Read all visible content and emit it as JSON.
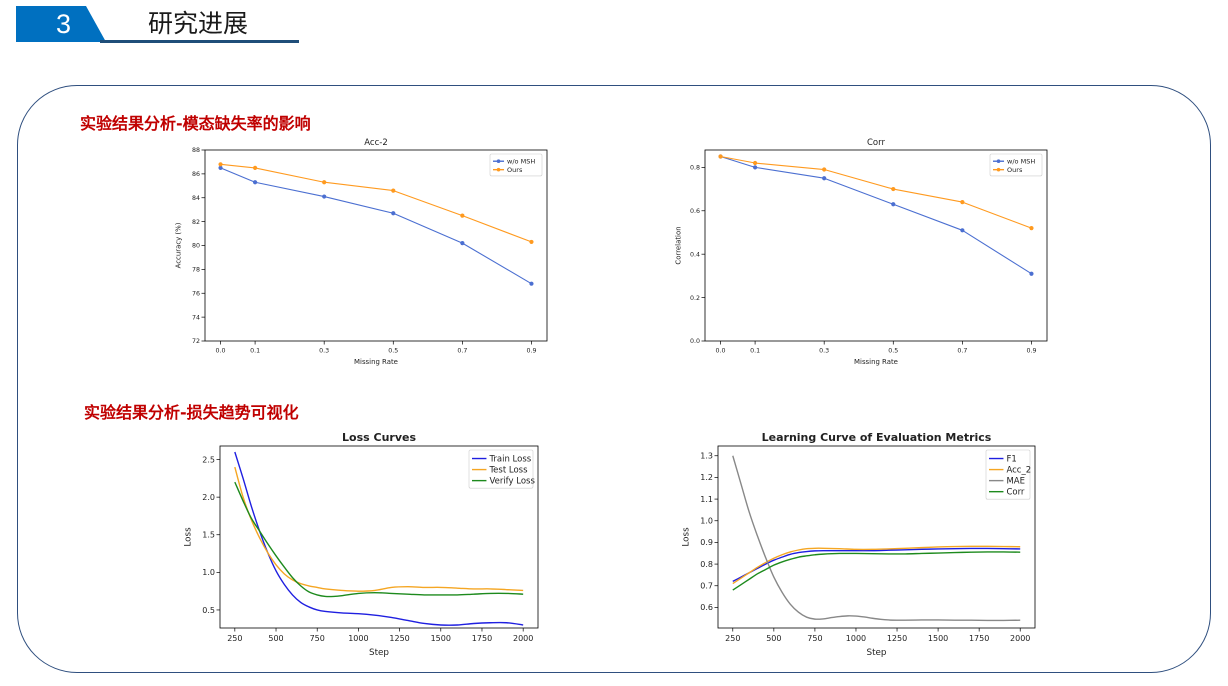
{
  "header": {
    "number": "3",
    "title": "研究进展"
  },
  "sections": {
    "missing_rate": "实验结果分析-模态缺失率的影响",
    "loss_vis": "实验结果分析-损失趋势可视化"
  },
  "colors": {
    "brand_blue": "#0070c0",
    "title_red": "#c00000",
    "panel_border": "#2f4f7f"
  },
  "chart_data": [
    {
      "id": "acc2",
      "type": "line",
      "title": "Acc-2",
      "bold_title": false,
      "xlabel": "Missing Rate",
      "ylabel": "Accuracy (%)",
      "xlim": [
        -0.045,
        0.945
      ],
      "ylim": [
        72,
        88
      ],
      "xticks": [
        0.0,
        0.1,
        0.3,
        0.5,
        0.7,
        0.9
      ],
      "xtick_labels": [
        "0.0",
        "0.1",
        "0.3",
        "0.5",
        "0.7",
        "0.9"
      ],
      "yticks": [
        72,
        74,
        76,
        78,
        80,
        82,
        84,
        86,
        88
      ],
      "ytick_labels": [
        "72",
        "74",
        "76",
        "78",
        "80",
        "82",
        "84",
        "86",
        "88"
      ],
      "legend": "top-right",
      "markers": true,
      "series": [
        {
          "name": "w/o MSH",
          "color": "#4b6fd1",
          "x": [
            0.0,
            0.1,
            0.3,
            0.5,
            0.7,
            0.9
          ],
          "y": [
            86.5,
            85.3,
            84.1,
            82.7,
            80.2,
            76.8
          ]
        },
        {
          "name": "Ours",
          "color": "#ff9a1f",
          "x": [
            0.0,
            0.1,
            0.3,
            0.5,
            0.7,
            0.9
          ],
          "y": [
            86.8,
            86.5,
            85.3,
            84.6,
            82.5,
            80.3
          ]
        }
      ]
    },
    {
      "id": "corr",
      "type": "line",
      "title": "Corr",
      "bold_title": false,
      "xlabel": "Missing Rate",
      "ylabel": "Correlation",
      "xlim": [
        -0.045,
        0.945
      ],
      "ylim": [
        0.0,
        0.88
      ],
      "xticks": [
        0.0,
        0.1,
        0.3,
        0.5,
        0.7,
        0.9
      ],
      "xtick_labels": [
        "0.0",
        "0.1",
        "0.3",
        "0.5",
        "0.7",
        "0.9"
      ],
      "yticks": [
        0.0,
        0.2,
        0.4,
        0.6,
        0.8
      ],
      "ytick_labels": [
        "0.0",
        "0.2",
        "0.4",
        "0.6",
        "0.8"
      ],
      "legend": "top-right",
      "markers": true,
      "series": [
        {
          "name": "w/o MSH",
          "color": "#4b6fd1",
          "x": [
            0.0,
            0.1,
            0.3,
            0.5,
            0.7,
            0.9
          ],
          "y": [
            0.85,
            0.8,
            0.75,
            0.63,
            0.51,
            0.31
          ]
        },
        {
          "name": "Ours",
          "color": "#ff9a1f",
          "x": [
            0.0,
            0.1,
            0.3,
            0.5,
            0.7,
            0.9
          ],
          "y": [
            0.85,
            0.82,
            0.79,
            0.7,
            0.64,
            0.52
          ]
        }
      ]
    },
    {
      "id": "loss",
      "type": "line",
      "title": "Loss Curves",
      "bold_title": true,
      "xlabel": "Step",
      "ylabel": "Loss",
      "xlim": [
        160,
        2090
      ],
      "ylim": [
        0.26,
        2.68
      ],
      "xticks": [
        250,
        500,
        750,
        1000,
        1250,
        1500,
        1750,
        2000
      ],
      "xtick_labels": [
        "250",
        "500",
        "750",
        "1000",
        "1250",
        "1500",
        "1750",
        "2000"
      ],
      "yticks": [
        0.5,
        1.0,
        1.5,
        2.0,
        2.5
      ],
      "ytick_labels": [
        "0.5",
        "1.0",
        "1.5",
        "2.0",
        "2.5"
      ],
      "legend": "top-right",
      "markers": false,
      "series": [
        {
          "name": "Train Loss",
          "color": "#1f1fe0",
          "x": [
            250,
            300,
            350,
            400,
            450,
            500,
            550,
            600,
            650,
            700,
            750,
            800,
            900,
            1000,
            1100,
            1200,
            1300,
            1400,
            1500,
            1600,
            1700,
            1800,
            1900,
            2000
          ],
          "y": [
            2.6,
            2.25,
            1.88,
            1.55,
            1.26,
            1.02,
            0.84,
            0.7,
            0.6,
            0.54,
            0.5,
            0.48,
            0.46,
            0.45,
            0.43,
            0.4,
            0.36,
            0.32,
            0.3,
            0.3,
            0.32,
            0.33,
            0.33,
            0.3
          ]
        },
        {
          "name": "Test Loss",
          "color": "#f5a623",
          "x": [
            250,
            300,
            350,
            400,
            450,
            500,
            550,
            600,
            650,
            700,
            750,
            800,
            900,
            1000,
            1100,
            1200,
            1300,
            1400,
            1500,
            1600,
            1700,
            1800,
            1900,
            2000
          ],
          "y": [
            2.4,
            2.0,
            1.7,
            1.46,
            1.26,
            1.1,
            0.98,
            0.9,
            0.85,
            0.82,
            0.8,
            0.78,
            0.76,
            0.75,
            0.76,
            0.8,
            0.81,
            0.8,
            0.8,
            0.79,
            0.78,
            0.78,
            0.77,
            0.76
          ]
        },
        {
          "name": "Verify Loss",
          "color": "#1d8a1d",
          "x": [
            250,
            300,
            350,
            400,
            450,
            500,
            550,
            600,
            650,
            700,
            750,
            800,
            850,
            900,
            1000,
            1100,
            1200,
            1300,
            1400,
            1500,
            1600,
            1700,
            1800,
            1900,
            2000
          ],
          "y": [
            2.2,
            1.95,
            1.72,
            1.55,
            1.38,
            1.22,
            1.07,
            0.93,
            0.82,
            0.74,
            0.7,
            0.68,
            0.68,
            0.69,
            0.72,
            0.73,
            0.72,
            0.71,
            0.7,
            0.7,
            0.7,
            0.71,
            0.72,
            0.72,
            0.71
          ]
        }
      ]
    },
    {
      "id": "metrics",
      "type": "line",
      "title": "Learning Curve of Evaluation Metrics",
      "bold_title": true,
      "xlabel": "Step",
      "ylabel": "Loss",
      "xlim": [
        160,
        2090
      ],
      "ylim": [
        0.505,
        1.345
      ],
      "xticks": [
        250,
        500,
        750,
        1000,
        1250,
        1500,
        1750,
        2000
      ],
      "xtick_labels": [
        "250",
        "500",
        "750",
        "1000",
        "1250",
        "1500",
        "1750",
        "2000"
      ],
      "yticks": [
        0.6,
        0.7,
        0.8,
        0.9,
        1.0,
        1.1,
        1.2,
        1.3
      ],
      "ytick_labels": [
        "0.6",
        "0.7",
        "0.8",
        "0.9",
        "1.0",
        "1.1",
        "1.2",
        "1.3"
      ],
      "legend": "top-right",
      "markers": false,
      "series": [
        {
          "name": "F1",
          "color": "#1f1fe0",
          "x": [
            250,
            300,
            350,
            400,
            450,
            500,
            550,
            600,
            650,
            700,
            750,
            800,
            900,
            1000,
            1100,
            1200,
            1300,
            1400,
            1500,
            1600,
            1700,
            1800,
            1900,
            2000
          ],
          "y": [
            0.72,
            0.74,
            0.76,
            0.78,
            0.8,
            0.818,
            0.832,
            0.845,
            0.853,
            0.858,
            0.861,
            0.862,
            0.862,
            0.862,
            0.862,
            0.864,
            0.866,
            0.868,
            0.87,
            0.871,
            0.872,
            0.872,
            0.871,
            0.87
          ]
        },
        {
          "name": "Acc_2",
          "color": "#f5a623",
          "x": [
            250,
            300,
            350,
            400,
            450,
            500,
            550,
            600,
            650,
            700,
            750,
            800,
            900,
            1000,
            1100,
            1200,
            1300,
            1400,
            1500,
            1600,
            1700,
            1800,
            1900,
            2000
          ],
          "y": [
            0.71,
            0.735,
            0.76,
            0.785,
            0.807,
            0.827,
            0.843,
            0.856,
            0.865,
            0.871,
            0.873,
            0.873,
            0.871,
            0.868,
            0.868,
            0.87,
            0.873,
            0.876,
            0.879,
            0.881,
            0.882,
            0.882,
            0.881,
            0.88
          ]
        },
        {
          "name": "MAE",
          "color": "#888888",
          "x": [
            250,
            300,
            350,
            400,
            450,
            500,
            550,
            600,
            650,
            700,
            750,
            800,
            850,
            900,
            950,
            1000,
            1050,
            1100,
            1150,
            1200,
            1250,
            1300,
            1400,
            1500,
            1600,
            1700,
            1800,
            1900,
            2000
          ],
          "y": [
            1.3,
            1.17,
            1.04,
            0.93,
            0.83,
            0.74,
            0.67,
            0.615,
            0.578,
            0.555,
            0.546,
            0.547,
            0.553,
            0.558,
            0.561,
            0.56,
            0.556,
            0.55,
            0.545,
            0.542,
            0.541,
            0.541,
            0.542,
            0.542,
            0.541,
            0.541,
            0.54,
            0.54,
            0.541
          ]
        },
        {
          "name": "Corr",
          "color": "#1d8a1d",
          "x": [
            250,
            300,
            350,
            400,
            450,
            500,
            550,
            600,
            650,
            700,
            750,
            800,
            900,
            1000,
            1100,
            1200,
            1300,
            1400,
            1500,
            1600,
            1700,
            1800,
            1900,
            2000
          ],
          "y": [
            0.68,
            0.705,
            0.73,
            0.755,
            0.775,
            0.795,
            0.81,
            0.822,
            0.832,
            0.838,
            0.843,
            0.846,
            0.849,
            0.849,
            0.848,
            0.847,
            0.847,
            0.849,
            0.851,
            0.853,
            0.855,
            0.856,
            0.856,
            0.855
          ]
        }
      ]
    }
  ]
}
